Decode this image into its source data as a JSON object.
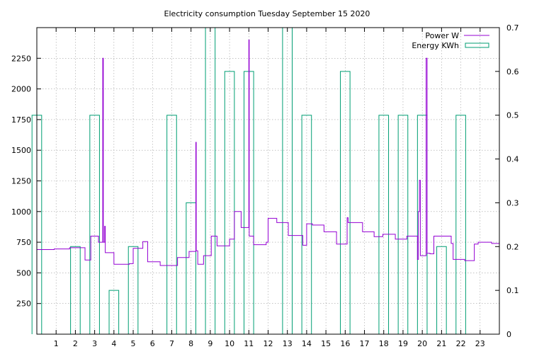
{
  "chart_data": {
    "type": "line",
    "title": "Electricity consumption Tuesday September 15 2020",
    "xlabel": "",
    "ylabel": "",
    "y2label": "",
    "xlim": [
      0,
      24
    ],
    "ylim": [
      0,
      2500
    ],
    "y2lim": [
      0,
      0.7
    ],
    "x_ticks": [
      1,
      2,
      3,
      4,
      5,
      6,
      7,
      8,
      9,
      10,
      11,
      12,
      13,
      14,
      15,
      16,
      17,
      18,
      19,
      20,
      21,
      22,
      23
    ],
    "y_ticks": [
      250,
      500,
      750,
      1000,
      1250,
      1500,
      1750,
      2000,
      2250
    ],
    "y2_ticks": [
      0,
      0.1,
      0.2,
      0.3,
      0.4,
      0.5,
      0.6,
      0.7
    ],
    "grid": true,
    "legend_position": "top-right",
    "colors": {
      "power": "#9400d3",
      "energy": "#009e73"
    },
    "series": [
      {
        "name": "Power W",
        "axis": "left",
        "style": "steps",
        "points": [
          [
            0.0,
            690
          ],
          [
            0.9,
            695
          ],
          [
            1.7,
            705
          ],
          [
            2.5,
            605
          ],
          [
            2.8,
            800
          ],
          [
            3.2,
            750
          ],
          [
            3.42,
            2250
          ],
          [
            3.45,
            750
          ],
          [
            3.52,
            880
          ],
          [
            3.55,
            665
          ],
          [
            4.0,
            570
          ],
          [
            4.5,
            570
          ],
          [
            4.8,
            575
          ],
          [
            5.0,
            700
          ],
          [
            5.3,
            700
          ],
          [
            5.5,
            755
          ],
          [
            5.75,
            590
          ],
          [
            6.4,
            560
          ],
          [
            7.3,
            625
          ],
          [
            7.9,
            675
          ],
          [
            8.25,
            1565
          ],
          [
            8.27,
            680
          ],
          [
            8.35,
            570
          ],
          [
            8.65,
            640
          ],
          [
            9.05,
            800
          ],
          [
            9.35,
            720
          ],
          [
            10.0,
            775
          ],
          [
            10.25,
            1000
          ],
          [
            10.6,
            870
          ],
          [
            11.0,
            2400
          ],
          [
            11.02,
            800
          ],
          [
            11.25,
            730
          ],
          [
            11.9,
            750
          ],
          [
            12.0,
            945
          ],
          [
            12.45,
            910
          ],
          [
            13.05,
            805
          ],
          [
            13.8,
            725
          ],
          [
            14.0,
            900
          ],
          [
            14.3,
            890
          ],
          [
            14.9,
            835
          ],
          [
            15.55,
            735
          ],
          [
            16.1,
            950
          ],
          [
            16.15,
            910
          ],
          [
            16.9,
            835
          ],
          [
            17.5,
            795
          ],
          [
            17.95,
            815
          ],
          [
            18.6,
            775
          ],
          [
            19.2,
            800
          ],
          [
            19.75,
            610
          ],
          [
            19.8,
            1000
          ],
          [
            19.85,
            1255
          ],
          [
            19.9,
            640
          ],
          [
            20.0,
            640
          ],
          [
            20.2,
            2250
          ],
          [
            20.25,
            660
          ],
          [
            20.4,
            655
          ],
          [
            20.6,
            800
          ],
          [
            21.5,
            740
          ],
          [
            21.6,
            610
          ],
          [
            22.2,
            600
          ],
          [
            22.7,
            735
          ],
          [
            22.9,
            750
          ],
          [
            23.6,
            740
          ],
          [
            24.0,
            740
          ]
        ]
      },
      {
        "name": "Energy KWh",
        "axis": "right",
        "style": "boxes",
        "boxes": [
          [
            0.0,
            0.5
          ],
          [
            1.0,
            0.0
          ],
          [
            2.0,
            0.2
          ],
          [
            3.0,
            0.5
          ],
          [
            4.0,
            0.1
          ],
          [
            5.0,
            0.2
          ],
          [
            6.0,
            0.0
          ],
          [
            7.0,
            0.5
          ],
          [
            8.0,
            0.3
          ],
          [
            9.0,
            0.7
          ],
          [
            10.0,
            0.6
          ],
          [
            11.0,
            0.6
          ],
          [
            12.0,
            0.0
          ],
          [
            13.0,
            0.7
          ],
          [
            14.0,
            0.5
          ],
          [
            15.0,
            0.0
          ],
          [
            16.0,
            0.6
          ],
          [
            17.0,
            0.0
          ],
          [
            18.0,
            0.5
          ],
          [
            19.0,
            0.5
          ],
          [
            20.0,
            0.5
          ],
          [
            21.0,
            0.2
          ],
          [
            22.0,
            0.5
          ],
          [
            23.0,
            0.0
          ]
        ]
      }
    ]
  }
}
